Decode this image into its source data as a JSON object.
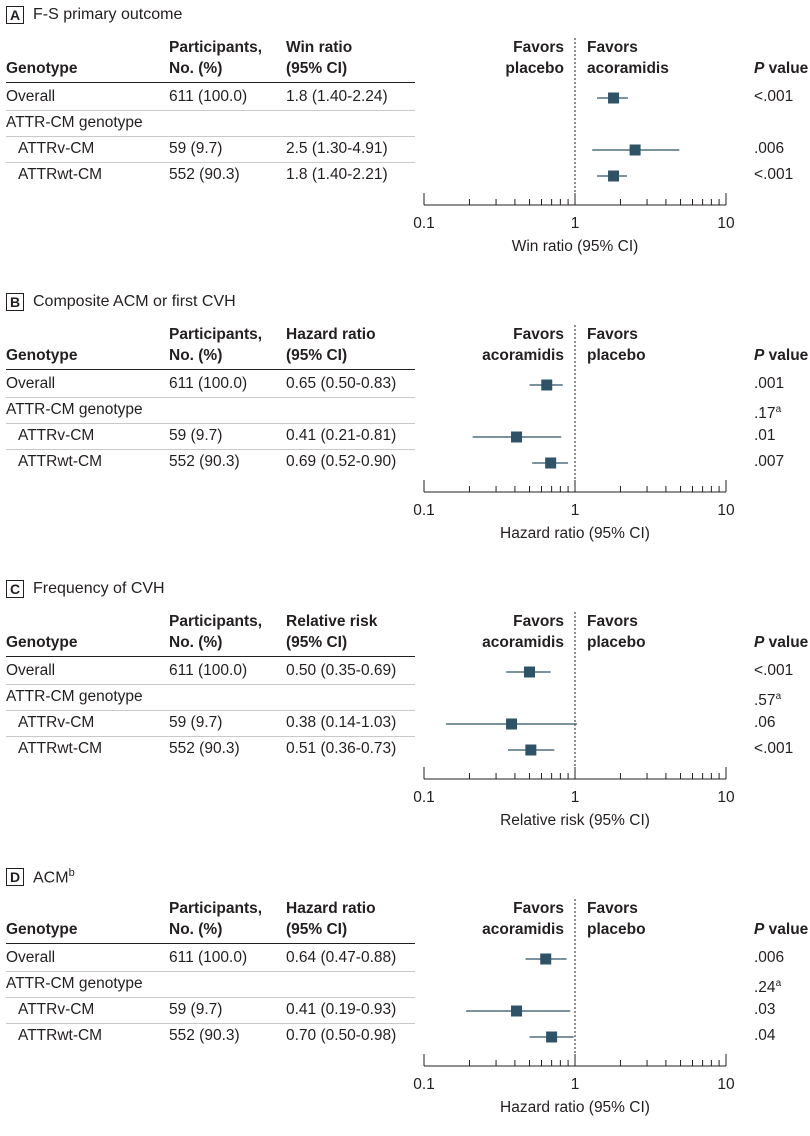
{
  "colors": {
    "marker": "#2e5266",
    "ci_line": "#2e5266",
    "axis": "#231f20",
    "ref_line": "#231f20"
  },
  "common": {
    "col_genotype": "Genotype",
    "col_participants": [
      "Participants,",
      "No. (%)"
    ],
    "pvalue_label_p": "P",
    "pvalue_label_rest": " value"
  },
  "panels": [
    {
      "letter": "A",
      "title": "F-S primary outcome",
      "title_sup": "",
      "measure_header": [
        "Win ratio",
        "(95% CI)"
      ],
      "favors_left": [
        "Favors",
        "placebo"
      ],
      "favors_right": [
        "Favors",
        "acoramidis"
      ],
      "rows": [
        {
          "label": "Overall",
          "indent": false,
          "participants": "611 (100.0)",
          "estimate_text": "1.8 (1.40-2.24)",
          "p": ".001",
          "p_prefix": "<",
          "p_sup": ""
        },
        {
          "label": "ATTR-CM genotype",
          "indent": false,
          "participants": "",
          "estimate_text": "",
          "p": "",
          "p_prefix": "",
          "p_sup": ""
        },
        {
          "label": "ATTRv-CM",
          "indent": true,
          "participants": "59 (9.7)",
          "estimate_text": "2.5 (1.30-4.91)",
          "p": ".006",
          "p_prefix": "",
          "p_sup": ""
        },
        {
          "label": "ATTRwt-CM",
          "indent": true,
          "participants": "552 (90.3)",
          "estimate_text": "1.8 (1.40-2.21)",
          "p": ".001",
          "p_prefix": "<",
          "p_sup": ""
        }
      ]
    },
    {
      "letter": "B",
      "title": "Composite ACM or first CVH",
      "title_sup": "",
      "measure_header": [
        "Hazard ratio",
        "(95% CI)"
      ],
      "favors_left": [
        "Favors",
        "acoramidis"
      ],
      "favors_right": [
        "Favors",
        "placebo"
      ],
      "rows": [
        {
          "label": "Overall",
          "indent": false,
          "participants": "611 (100.0)",
          "estimate_text": "0.65 (0.50-0.83)",
          "p": ".001",
          "p_prefix": "",
          "p_sup": ""
        },
        {
          "label": "ATTR-CM genotype",
          "indent": false,
          "participants": "",
          "estimate_text": "",
          "p": ".17",
          "p_prefix": "",
          "p_sup": "a"
        },
        {
          "label": "ATTRv-CM",
          "indent": true,
          "participants": "59 (9.7)",
          "estimate_text": "0.41 (0.21-0.81)",
          "p": ".01",
          "p_prefix": "",
          "p_sup": ""
        },
        {
          "label": "ATTRwt-CM",
          "indent": true,
          "participants": "552 (90.3)",
          "estimate_text": "0.69 (0.52-0.90)",
          "p": ".007",
          "p_prefix": "",
          "p_sup": ""
        }
      ]
    },
    {
      "letter": "C",
      "title": "Frequency of CVH",
      "title_sup": "",
      "measure_header": [
        "Relative risk",
        "(95% CI)"
      ],
      "favors_left": [
        "Favors",
        "acoramidis"
      ],
      "favors_right": [
        "Favors",
        "placebo"
      ],
      "rows": [
        {
          "label": "Overall",
          "indent": false,
          "participants": "611 (100.0)",
          "estimate_text": "0.50 (0.35-0.69)",
          "p": ".001",
          "p_prefix": "<",
          "p_sup": ""
        },
        {
          "label": "ATTR-CM genotype",
          "indent": false,
          "participants": "",
          "estimate_text": "",
          "p": ".57",
          "p_prefix": "",
          "p_sup": "a"
        },
        {
          "label": "ATTRv-CM",
          "indent": true,
          "participants": "59 (9.7)",
          "estimate_text": "0.38 (0.14-1.03)",
          "p": ".06",
          "p_prefix": "",
          "p_sup": ""
        },
        {
          "label": "ATTRwt-CM",
          "indent": true,
          "participants": "552 (90.3)",
          "estimate_text": "0.51 (0.36-0.73)",
          "p": ".001",
          "p_prefix": "<",
          "p_sup": ""
        }
      ]
    },
    {
      "letter": "D",
      "title": "ACM",
      "title_sup": "b",
      "measure_header": [
        "Hazard ratio",
        "(95% CI)"
      ],
      "favors_left": [
        "Favors",
        "acoramidis"
      ],
      "favors_right": [
        "Favors",
        "placebo"
      ],
      "rows": [
        {
          "label": "Overall",
          "indent": false,
          "participants": "611 (100.0)",
          "estimate_text": "0.64 (0.47-0.88)",
          "p": ".006",
          "p_prefix": "",
          "p_sup": ""
        },
        {
          "label": "ATTR-CM genotype",
          "indent": false,
          "participants": "",
          "estimate_text": "",
          "p": ".24",
          "p_prefix": "",
          "p_sup": "a"
        },
        {
          "label": "ATTRv-CM",
          "indent": true,
          "participants": "59 (9.7)",
          "estimate_text": "0.41 (0.19-0.93)",
          "p": ".03",
          "p_prefix": "",
          "p_sup": ""
        },
        {
          "label": "ATTRwt-CM",
          "indent": true,
          "participants": "552 (90.3)",
          "estimate_text": "0.70 (0.50-0.98)",
          "p": ".04",
          "p_prefix": "",
          "p_sup": ""
        }
      ]
    }
  ],
  "chart_data": [
    {
      "type": "forest",
      "title": "F-S primary outcome",
      "xlabel": "Win ratio (95% CI)",
      "xscale": "log",
      "xlim": [
        0.1,
        10
      ],
      "xticks": [
        "0.1",
        "1",
        "10"
      ],
      "reference": 1,
      "categories": [
        "Overall",
        "ATTRv-CM",
        "ATTRwt-CM"
      ],
      "estimates": [
        1.8,
        2.5,
        1.8
      ],
      "ci_low": [
        1.4,
        1.3,
        1.4
      ],
      "ci_high": [
        2.24,
        4.91,
        2.21
      ]
    },
    {
      "type": "forest",
      "title": "Composite ACM or first CVH",
      "xlabel": "Hazard ratio (95% CI)",
      "xscale": "log",
      "xlim": [
        0.1,
        10
      ],
      "xticks": [
        "0.1",
        "1",
        "10"
      ],
      "reference": 1,
      "categories": [
        "Overall",
        "ATTRv-CM",
        "ATTRwt-CM"
      ],
      "estimates": [
        0.65,
        0.41,
        0.69
      ],
      "ci_low": [
        0.5,
        0.21,
        0.52
      ],
      "ci_high": [
        0.83,
        0.81,
        0.9
      ]
    },
    {
      "type": "forest",
      "title": "Frequency of CVH",
      "xlabel": "Relative risk (95% CI)",
      "xscale": "log",
      "xlim": [
        0.1,
        10
      ],
      "xticks": [
        "0.1",
        "1",
        "10"
      ],
      "reference": 1,
      "categories": [
        "Overall",
        "ATTRv-CM",
        "ATTRwt-CM"
      ],
      "estimates": [
        0.5,
        0.38,
        0.51
      ],
      "ci_low": [
        0.35,
        0.14,
        0.36
      ],
      "ci_high": [
        0.69,
        1.03,
        0.73
      ]
    },
    {
      "type": "forest",
      "title": "ACM",
      "xlabel": "Hazard ratio (95% CI)",
      "xscale": "log",
      "xlim": [
        0.1,
        10
      ],
      "xticks": [
        "0.1",
        "1",
        "10"
      ],
      "reference": 1,
      "categories": [
        "Overall",
        "ATTRv-CM",
        "ATTRwt-CM"
      ],
      "estimates": [
        0.64,
        0.41,
        0.7
      ],
      "ci_low": [
        0.47,
        0.19,
        0.5
      ],
      "ci_high": [
        0.88,
        0.93,
        0.98
      ]
    }
  ]
}
